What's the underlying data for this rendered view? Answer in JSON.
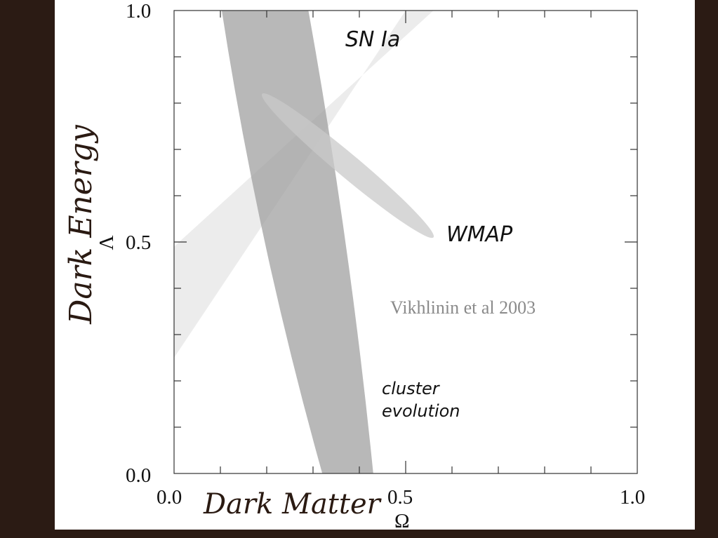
{
  "chart_data": {
    "type": "contour",
    "xlim": [
      0.0,
      1.0
    ],
    "ylim": [
      0.0,
      1.0
    ],
    "x_ticks": [
      "0.0",
      "0.5",
      "1.0"
    ],
    "y_ticks": [
      "0.0",
      "0.5",
      "1.0"
    ],
    "xlabel": "Ω",
    "ylabel": "Λ",
    "xlabel_hand": "Dark Matter",
    "ylabel_hand": "Dark Energy",
    "grid": false,
    "regions": [
      {
        "name": "SN Ia",
        "shape": "band",
        "lower_edge": [
          [
            0.0,
            0.25
          ],
          [
            0.5,
            1.0
          ]
        ],
        "upper_edge": [
          [
            0.0,
            0.49
          ],
          [
            0.56,
            1.0
          ]
        ],
        "color": "#e4e4e4"
      },
      {
        "name": "cluster evolution",
        "shape": "band",
        "left_edge": [
          [
            0.103,
            1.0
          ],
          [
            0.18,
            0.5
          ],
          [
            0.32,
            0.0
          ]
        ],
        "right_edge": [
          [
            0.29,
            1.0
          ],
          [
            0.38,
            0.5
          ],
          [
            0.43,
            0.0
          ]
        ],
        "color": "#a0a0a0"
      },
      {
        "name": "WMAP",
        "shape": "ellipse",
        "major_axis": [
          [
            0.19,
            0.82
          ],
          [
            0.56,
            0.51
          ]
        ],
        "semi_minor": 0.025,
        "color": "#c9c9c9"
      }
    ],
    "annotations": [
      "SN Ia",
      "WMAP",
      "cluster evolution"
    ],
    "credit": "Vikhlinin et al 2003"
  },
  "colors": {
    "background": "#2b1b14",
    "panel": "#ffffff",
    "sn_band": "#e4e4e4",
    "cluster_band": "#a0a0a0",
    "wmap_ellipse": "#c9c9c9",
    "credit": "#8a8a8a",
    "hand_label": "#2a1a12"
  }
}
